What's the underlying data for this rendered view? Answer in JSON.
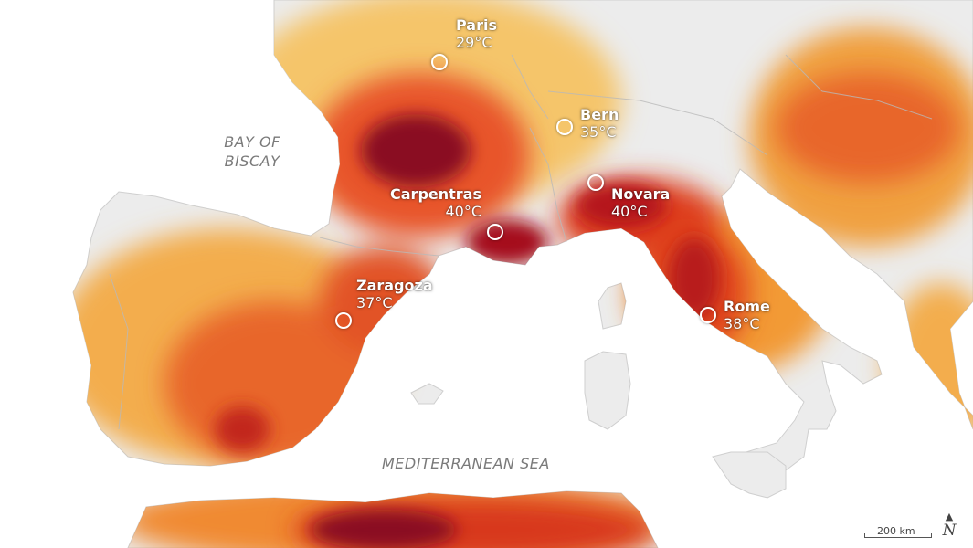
{
  "cities": [
    {
      "id": "paris",
      "name": "Paris",
      "temp": "29°C"
    },
    {
      "id": "bern",
      "name": "Bern",
      "temp": "35°C"
    },
    {
      "id": "carpentras",
      "name": "Carpentras",
      "temp": "40°C"
    },
    {
      "id": "novara",
      "name": "Novara",
      "temp": "40°C"
    },
    {
      "id": "zaragoza",
      "name": "Zaragoza",
      "temp": "37°C"
    },
    {
      "id": "rome",
      "name": "Rome",
      "temp": "38°C"
    }
  ],
  "water_labels": {
    "biscay_line1": "BAY OF",
    "biscay_line2": "BISCAY",
    "mediterranean": "MEDITERRANEAN SEA"
  },
  "scale_bar": {
    "label": "200 km"
  },
  "north_arrow": {
    "symbol": "N"
  },
  "colors": {
    "sea": "#ffffff",
    "land_cool": "#eeeeee",
    "heat_low": "#f6d27a",
    "heat_mid": "#f29a35",
    "heat_high": "#e0451d",
    "heat_extreme": "#8a0a22",
    "city_marker": "#ffffff"
  }
}
